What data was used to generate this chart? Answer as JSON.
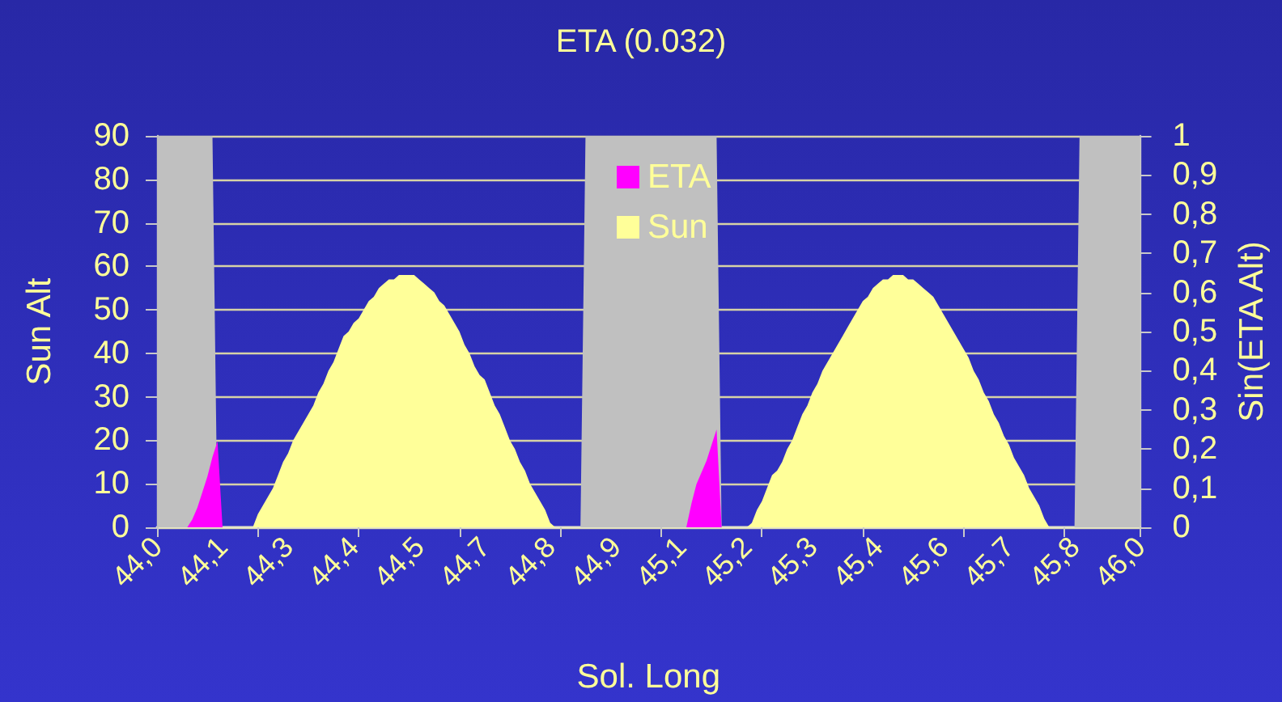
{
  "chart_data": {
    "type": "area",
    "title": "ETA (0.032)",
    "xlabel": "Sol. Long",
    "ylabel": "Sun Alt",
    "y2label": "Sin(ETA Alt)",
    "categories": [
      "44,0",
      null,
      null,
      null,
      null,
      null,
      null,
      null,
      null,
      null,
      null,
      null,
      null,
      "44,1",
      null,
      null,
      null,
      null,
      null,
      null,
      null,
      null,
      null,
      null,
      null,
      null,
      "44,3",
      null,
      null,
      null,
      null,
      null,
      null,
      null,
      null,
      null,
      null,
      null,
      null,
      "44,4",
      null,
      null,
      null,
      null,
      null,
      null,
      null,
      null,
      null,
      null,
      null,
      null,
      "44,5",
      null,
      null,
      null,
      null,
      null,
      null,
      null,
      null,
      null,
      null,
      null,
      null,
      "44,7",
      null,
      null,
      null,
      null,
      null,
      null,
      null,
      null,
      null,
      null,
      null,
      null,
      "44,8",
      null,
      null,
      null,
      null,
      null,
      null,
      null,
      null,
      null,
      null,
      null,
      null,
      "44,9",
      null,
      null,
      null,
      null,
      null,
      null,
      null,
      null,
      null,
      null,
      null,
      null,
      "45,1",
      null,
      null,
      null,
      null,
      null,
      null,
      null,
      null,
      null,
      null,
      null,
      null,
      "45,2",
      null,
      null,
      null,
      null,
      null,
      null,
      null,
      null,
      null,
      null,
      null,
      null,
      "45,3",
      null,
      null,
      null,
      null,
      null,
      null,
      null,
      null,
      null,
      null,
      null,
      null,
      "45,4",
      null,
      null,
      null,
      null,
      null,
      null,
      null,
      null,
      null,
      null,
      null,
      null,
      "45,6",
      null,
      null,
      null,
      null,
      null,
      null,
      null,
      null,
      null,
      null,
      null,
      null,
      "45,7",
      null,
      null,
      null,
      null,
      null,
      null,
      null,
      null,
      null,
      null,
      null,
      null,
      "45,8",
      null,
      null,
      null,
      null,
      null,
      null,
      null,
      null,
      null,
      null,
      null,
      null,
      "46,0"
    ],
    "series": [
      {
        "color": "#c0c0c0",
        "values": [
          90,
          90,
          90,
          90,
          90,
          90,
          90,
          90,
          90,
          90,
          90,
          90,
          0,
          0,
          0,
          0,
          0,
          0,
          0,
          0,
          0,
          0,
          0,
          0,
          0,
          0,
          0,
          0,
          0,
          0,
          0,
          0,
          0,
          0,
          0,
          0,
          0,
          0,
          0,
          0,
          0,
          0,
          0,
          0,
          0,
          0,
          0,
          0,
          0,
          0,
          0,
          0,
          0,
          0,
          0,
          0,
          0,
          0,
          0,
          0,
          0,
          0,
          0,
          0,
          0,
          0,
          0,
          0,
          0,
          0,
          0,
          0,
          0,
          0,
          0,
          0,
          0,
          0,
          0,
          0,
          0,
          0,
          0,
          0,
          0,
          90,
          90,
          90,
          90,
          90,
          90,
          90,
          90,
          90,
          90,
          90,
          90,
          90,
          90,
          90,
          90,
          90,
          90,
          90,
          90,
          90,
          90,
          90,
          90,
          90,
          90,
          90,
          0,
          0,
          0,
          0,
          0,
          0,
          0,
          0,
          0,
          0,
          0,
          0,
          0,
          0,
          0,
          0,
          0,
          0,
          0,
          0,
          0,
          0,
          0,
          0,
          0,
          0,
          0,
          0,
          0,
          0,
          0,
          0,
          0,
          0,
          0,
          0,
          0,
          0,
          0,
          0,
          0,
          0,
          0,
          0,
          0,
          0,
          0,
          0,
          0,
          0,
          0,
          0,
          0,
          0,
          0,
          0,
          0,
          0,
          0,
          0,
          0,
          0,
          0,
          0,
          0,
          0,
          0,
          0,
          0,
          0,
          0,
          90,
          90,
          90,
          90,
          90,
          90,
          90,
          90,
          90,
          90,
          90,
          90,
          90
        ]
      },
      {
        "name": "ETA",
        "color": "#ff00ff",
        "axis": "y2",
        "values": [
          0,
          0,
          0,
          0,
          0,
          0,
          0,
          0.02,
          0.05,
          0.09,
          0.13,
          0.18,
          0.22,
          0,
          0,
          0,
          0,
          0,
          0,
          0,
          0,
          0,
          0,
          0,
          0,
          0,
          0,
          0,
          0,
          0,
          0,
          0,
          0,
          0,
          0,
          0,
          0,
          0,
          0,
          0,
          0,
          0,
          0,
          0,
          0,
          0,
          0,
          0,
          0,
          0,
          0,
          0,
          0,
          0,
          0,
          0,
          0,
          0,
          0,
          0,
          0,
          0,
          0,
          0,
          0,
          0,
          0,
          0,
          0,
          0,
          0,
          0,
          0,
          0,
          0,
          0,
          0,
          0,
          0,
          0,
          0,
          0,
          0,
          0,
          0,
          0,
          0,
          0,
          0,
          0,
          0,
          0,
          0,
          0,
          0,
          0,
          0,
          0,
          0,
          0,
          0,
          0,
          0,
          0,
          0,
          0,
          0.06,
          0.11,
          0.14,
          0.17,
          0.21,
          0.25,
          0,
          0,
          0,
          0,
          0,
          0,
          0,
          0,
          0,
          0,
          0,
          0,
          0,
          0,
          0,
          0,
          0,
          0,
          0,
          0,
          0,
          0,
          0,
          0,
          0,
          0,
          0,
          0,
          0,
          0,
          0,
          0,
          0,
          0,
          0,
          0,
          0,
          0,
          0,
          0,
          0,
          0,
          0,
          0,
          0,
          0,
          0,
          0,
          0,
          0,
          0,
          0,
          0,
          0,
          0,
          0,
          0,
          0,
          0,
          0,
          0,
          0,
          0,
          0,
          0,
          0,
          0,
          0,
          0,
          0,
          0,
          0,
          0,
          0,
          0,
          0,
          0,
          0,
          0,
          0,
          0,
          0,
          0,
          0
        ]
      },
      {
        "name": "Sun",
        "color": "#ffff99",
        "values": [
          0,
          0,
          0,
          0,
          0,
          0,
          0,
          0,
          0,
          0,
          0,
          0,
          0,
          0,
          0,
          0,
          0,
          0,
          0,
          0,
          3,
          5,
          7,
          9,
          12,
          15,
          17,
          20,
          22,
          24,
          26,
          28,
          31,
          33,
          36,
          38,
          41,
          44,
          45,
          47,
          48,
          50,
          52,
          53,
          55,
          56,
          57,
          57,
          58,
          58,
          58,
          58,
          57,
          56,
          55,
          54,
          52,
          51,
          49,
          47,
          45,
          42,
          40,
          37,
          35,
          34,
          31,
          28,
          26,
          23,
          20,
          18,
          15,
          13,
          10,
          8,
          6,
          4,
          1,
          0,
          0,
          0,
          0,
          0,
          0,
          0,
          0,
          0,
          0,
          0,
          0,
          0,
          0,
          0,
          0,
          0,
          0,
          0,
          0,
          0,
          0,
          0,
          0,
          0,
          0,
          0,
          0,
          0,
          0,
          0,
          0,
          0,
          0,
          0,
          0,
          0,
          0,
          0,
          1,
          4,
          6,
          9,
          12,
          13,
          15,
          18,
          20,
          23,
          26,
          28,
          31,
          33,
          36,
          38,
          40,
          42,
          44,
          46,
          48,
          50,
          52,
          53,
          55,
          56,
          57,
          57,
          58,
          58,
          58,
          57,
          57,
          56,
          55,
          54,
          53,
          51,
          49,
          47,
          45,
          43,
          41,
          39,
          36,
          34,
          31,
          29,
          26,
          24,
          21,
          19,
          16,
          14,
          12,
          9,
          7,
          5,
          2,
          0,
          0,
          0,
          0,
          0,
          0,
          0,
          0,
          0,
          0,
          0,
          0,
          0,
          0,
          0,
          0,
          0,
          0,
          0
        ]
      }
    ],
    "ylim": [
      0,
      90
    ],
    "yticks": [
      0,
      10,
      20,
      30,
      40,
      50,
      60,
      70,
      80,
      90
    ],
    "y2lim": [
      0,
      1
    ],
    "y2ticks": [
      0,
      {
        "value": 0.1,
        "label": "0,1"
      },
      {
        "value": 0.2,
        "label": "0,2"
      },
      {
        "value": 0.3,
        "label": "0,3"
      },
      {
        "value": 0.4,
        "label": "0,4"
      },
      {
        "value": 0.5,
        "label": "0,5"
      },
      {
        "value": 0.6,
        "label": "0,6"
      },
      {
        "value": 0.7,
        "label": "0,7"
      },
      {
        "value": 0.8,
        "label": "0,8"
      },
      {
        "value": 0.9,
        "label": "0,9"
      },
      1
    ],
    "grid": "y",
    "legend": "top"
  }
}
